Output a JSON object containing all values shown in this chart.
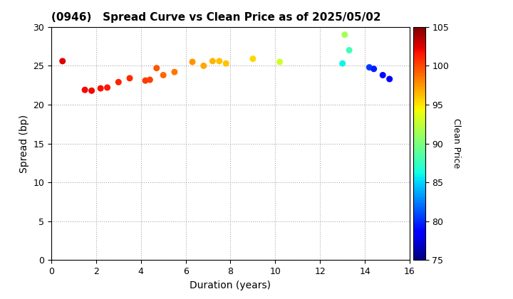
{
  "title": "(0946)   Spread Curve vs Clean Price as of 2025/05/02",
  "xlabel": "Duration (years)",
  "ylabel": "Spread (bp)",
  "colorbar_label": "Clean Price",
  "xlim": [
    0,
    16
  ],
  "ylim": [
    0,
    30
  ],
  "xticks": [
    0,
    2,
    4,
    6,
    8,
    10,
    12,
    14,
    16
  ],
  "yticks": [
    0,
    5,
    10,
    15,
    20,
    25,
    30
  ],
  "cbar_ticks": [
    75,
    80,
    85,
    90,
    95,
    100,
    105
  ],
  "cbar_min": 75,
  "cbar_max": 105,
  "points": [
    {
      "duration": 0.5,
      "spread": 25.6,
      "price": 102.5
    },
    {
      "duration": 1.5,
      "spread": 21.9,
      "price": 102.0
    },
    {
      "duration": 1.8,
      "spread": 21.8,
      "price": 102.0
    },
    {
      "duration": 2.2,
      "spread": 22.1,
      "price": 101.8
    },
    {
      "duration": 2.5,
      "spread": 22.2,
      "price": 101.5
    },
    {
      "duration": 3.0,
      "spread": 22.9,
      "price": 101.2
    },
    {
      "duration": 3.5,
      "spread": 23.4,
      "price": 101.0
    },
    {
      "duration": 4.2,
      "spread": 23.1,
      "price": 100.5
    },
    {
      "duration": 4.4,
      "spread": 23.2,
      "price": 100.3
    },
    {
      "duration": 4.7,
      "spread": 24.7,
      "price": 99.5
    },
    {
      "duration": 5.0,
      "spread": 23.8,
      "price": 99.0
    },
    {
      "duration": 5.5,
      "spread": 24.2,
      "price": 98.5
    },
    {
      "duration": 6.3,
      "spread": 25.5,
      "price": 97.5
    },
    {
      "duration": 6.8,
      "spread": 25.0,
      "price": 97.0
    },
    {
      "duration": 7.2,
      "spread": 25.6,
      "price": 96.5
    },
    {
      "duration": 7.5,
      "spread": 25.6,
      "price": 96.2
    },
    {
      "duration": 7.8,
      "spread": 25.3,
      "price": 96.0
    },
    {
      "duration": 9.0,
      "spread": 25.9,
      "price": 95.5
    },
    {
      "duration": 10.2,
      "spread": 25.5,
      "price": 93.0
    },
    {
      "duration": 13.0,
      "spread": 25.3,
      "price": 86.0
    },
    {
      "duration": 13.1,
      "spread": 29.0,
      "price": 91.5
    },
    {
      "duration": 13.3,
      "spread": 27.0,
      "price": 88.0
    },
    {
      "duration": 14.2,
      "spread": 24.8,
      "price": 80.5
    },
    {
      "duration": 14.4,
      "spread": 24.6,
      "price": 79.5
    },
    {
      "duration": 14.8,
      "spread": 23.8,
      "price": 79.0
    },
    {
      "duration": 15.1,
      "spread": 23.3,
      "price": 78.5
    }
  ],
  "marker_size": 30,
  "colormap": "jet",
  "background_color": "#ffffff",
  "grid_color": "#aaaaaa",
  "title_fontsize": 11,
  "label_fontsize": 10,
  "tick_fontsize": 9,
  "cbar_fontsize": 9
}
